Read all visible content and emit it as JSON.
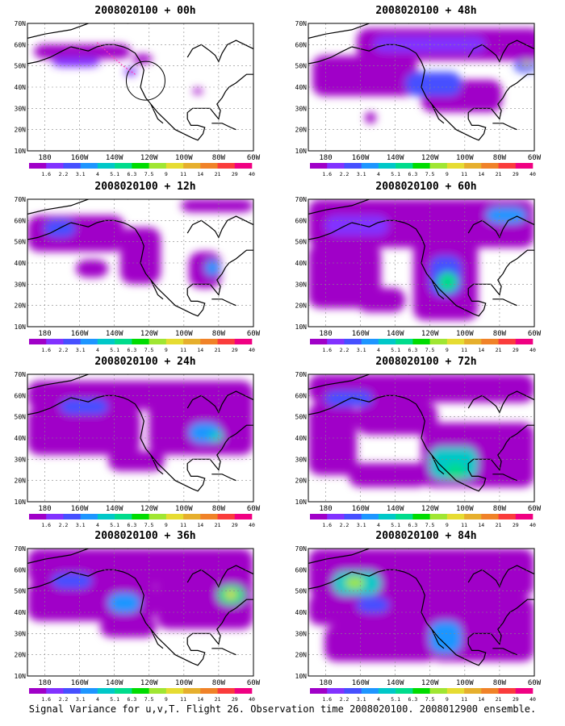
{
  "panels": [
    {
      "title": "2008020100 + 00h",
      "lead": "00h"
    },
    {
      "title": "2008020100 + 48h",
      "lead": "48h"
    },
    {
      "title": "2008020100 + 12h",
      "lead": "12h"
    },
    {
      "title": "2008020100 + 60h",
      "lead": "60h"
    },
    {
      "title": "2008020100 + 24h",
      "lead": "24h"
    },
    {
      "title": "2008020100 + 72h",
      "lead": "72h"
    },
    {
      "title": "2008020100 + 36h",
      "lead": "36h"
    },
    {
      "title": "2008020100 + 84h",
      "lead": "84h"
    }
  ],
  "axes": {
    "lat_labels": [
      "70N",
      "60N",
      "50N",
      "40N",
      "30N",
      "20N",
      "10N"
    ],
    "lon_labels": [
      "180",
      "160W",
      "140W",
      "120W",
      "100W",
      "80W",
      "60W"
    ]
  },
  "colorbar": {
    "levels": [
      "1.6",
      "2.2",
      "3.1",
      "4",
      "5.1",
      "6.3",
      "7.5",
      "9",
      "11",
      "14",
      "21",
      "29",
      "40"
    ],
    "colors": [
      "#a000c8",
      "#8232ff",
      "#4650ff",
      "#1e96ff",
      "#00c8c8",
      "#00dc8c",
      "#00dc00",
      "#a0e632",
      "#e6dc32",
      "#e6af2d",
      "#f08228",
      "#fa3c3c",
      "#f00082"
    ]
  },
  "footer": "Signal Variance for u,v,T. Flight 26. Observation time 2008020100. 2008012900 ensemble."
}
